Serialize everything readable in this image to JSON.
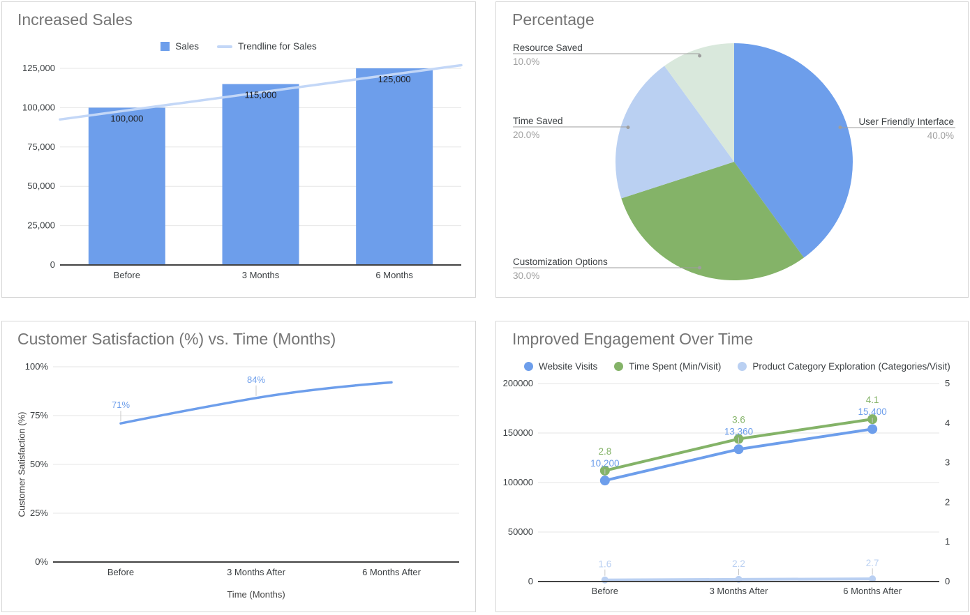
{
  "colors": {
    "blue": "#6D9EEB",
    "green": "#84B368",
    "light_blue": "#BAD0F2",
    "light_green": "#D9E8DC",
    "trendline": "#C3D7F7",
    "grid": "#E6E6E6",
    "axis": "#424242",
    "title": "#757575",
    "tick": "#3C4043",
    "bar_label": "#202124",
    "pie_label": "#3C4043",
    "pie_pct": "#9E9E9E",
    "leader": "#9E9E9E",
    "stem": "#C8C8C8"
  },
  "chart_data": [
    {
      "id": "increased-sales",
      "type": "bar",
      "title": "Increased Sales",
      "categories": [
        "Before",
        "3 Months",
        "6 Months"
      ],
      "series": [
        {
          "name": "Sales",
          "color": "blue",
          "values": [
            100000,
            115000,
            125000
          ],
          "data_labels": [
            "100,000",
            "115,000",
            "125,000"
          ]
        }
      ],
      "trendline": {
        "name": "Trendline for Sales",
        "color": "trendline",
        "start_value": 92500,
        "end_value": 127000
      },
      "y_ticks": [
        {
          "value": 125000,
          "label": "125,000"
        },
        {
          "value": 100000,
          "label": "100,000"
        },
        {
          "value": 75000,
          "label": "75,000"
        },
        {
          "value": 50000,
          "label": "50,000"
        },
        {
          "value": 25000,
          "label": "25,000"
        },
        {
          "value": 0,
          "label": "0"
        }
      ],
      "ylim": [
        0,
        125000
      ],
      "grid": true,
      "legend_position": "top-center"
    },
    {
      "id": "percentage",
      "type": "pie",
      "title": "Percentage",
      "start_angle_deg": 0,
      "clockwise": true,
      "slices": [
        {
          "label": "User Friendly Interface",
          "value": 40,
          "pct_label": "40.0%",
          "color": "blue",
          "label_side": "right",
          "label_line_y": 180
        },
        {
          "label": "Customization Options",
          "value": 30,
          "pct_label": "30.0%",
          "color": "green",
          "label_side": "left",
          "label_line_y": 381
        },
        {
          "label": "Time Saved",
          "value": 20,
          "pct_label": "20.0%",
          "color": "light_blue",
          "label_side": "left",
          "label_line_y": 179
        },
        {
          "label": "Resource Saved",
          "value": 10,
          "pct_label": "10.0%",
          "color": "light_green",
          "label_side": "left",
          "label_line_y": 74
        }
      ]
    },
    {
      "id": "customer-satisfaction",
      "type": "line",
      "title": "Customer Satisfaction (%) vs. Time (Months)",
      "categories": [
        "Before",
        "3 Months After",
        "6 Months After"
      ],
      "xlabel": "Time (Months)",
      "ylabel": "Customer Satisfaction (%)",
      "series": [
        {
          "name": "Customer Satisfaction",
          "color": "blue",
          "smooth": true,
          "values": [
            71,
            84,
            92
          ],
          "data_labels": [
            "71%",
            "84%",
            null
          ]
        }
      ],
      "y_ticks": [
        {
          "value": 100,
          "label": "100%"
        },
        {
          "value": 75,
          "label": "75%"
        },
        {
          "value": 50,
          "label": "50%"
        },
        {
          "value": 25,
          "label": "25%"
        },
        {
          "value": 0,
          "label": "0%"
        }
      ],
      "ylim": [
        0,
        100
      ],
      "grid": true
    },
    {
      "id": "improved-engagement",
      "type": "line",
      "title": "Improved Engagement Over Time",
      "categories": [
        "Before",
        "3 Months After",
        "6 Months After"
      ],
      "series": [
        {
          "name": "Website Visits",
          "color": "blue",
          "axis": "left",
          "values": [
            10200,
            13360,
            15400
          ],
          "plotted_values": [
            102000,
            133600,
            154000
          ],
          "data_labels": [
            "10,200",
            "13,360",
            "15,400"
          ],
          "point_radius": 7
        },
        {
          "name": "Time Spent (Min/Visit)",
          "color": "green",
          "axis": "right",
          "values": [
            2.8,
            3.6,
            4.1
          ],
          "plotted_values": [
            2.8,
            3.6,
            4.1
          ],
          "data_labels": [
            "2.8",
            "3.6",
            "4.1"
          ],
          "point_radius": 7
        },
        {
          "name": "Product Category Exploration (Categories/Visit)",
          "color": "light_blue",
          "axis": "left",
          "values": [
            1.6,
            2.2,
            2.7
          ],
          "plotted_values": [
            1600,
            2200,
            2700
          ],
          "data_labels": [
            "1.6",
            "2.2",
            "2.7"
          ],
          "point_radius": 5
        }
      ],
      "left_ticks": [
        {
          "value": 200000,
          "label": "200000"
        },
        {
          "value": 150000,
          "label": "150000"
        },
        {
          "value": 100000,
          "label": "100000"
        },
        {
          "value": 50000,
          "label": "50000"
        },
        {
          "value": 0,
          "label": "0"
        }
      ],
      "right_ticks": [
        {
          "value": 5,
          "label": "5"
        },
        {
          "value": 4,
          "label": "4"
        },
        {
          "value": 3,
          "label": "3"
        },
        {
          "value": 2,
          "label": "2"
        },
        {
          "value": 1,
          "label": "1"
        },
        {
          "value": 0,
          "label": "0"
        }
      ],
      "left_lim": [
        0,
        200000
      ],
      "right_lim": [
        0,
        5
      ],
      "grid": true,
      "legend_position": "top-left"
    }
  ]
}
